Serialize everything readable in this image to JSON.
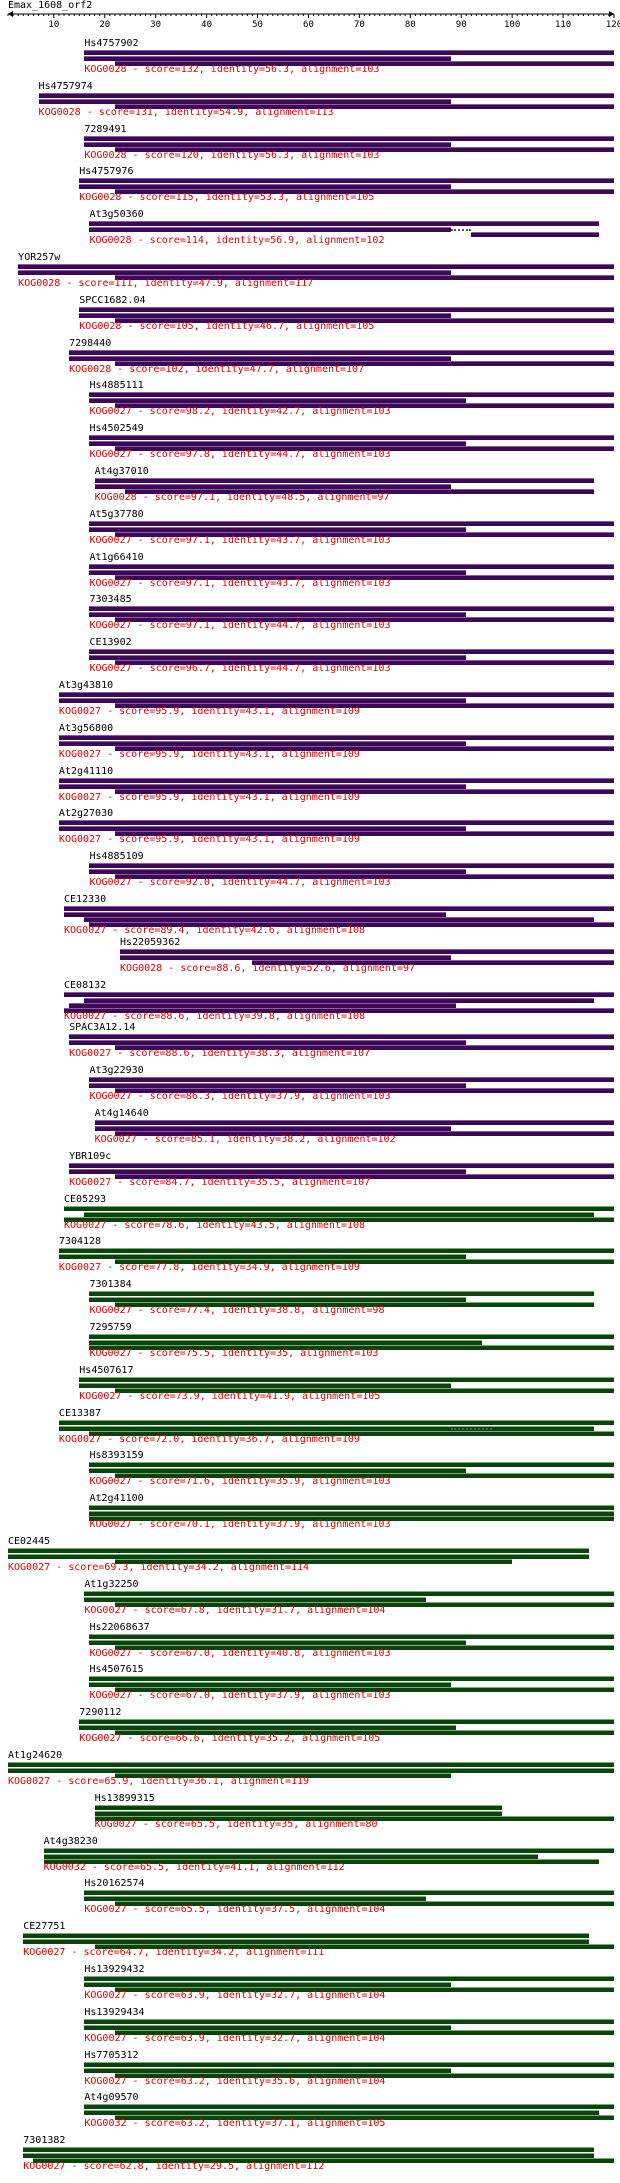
{
  "query": "Emax_1608_orf2",
  "ruler": {
    "min": 1,
    "max": 120,
    "ticks": [
      10,
      20,
      30,
      40,
      50,
      60,
      70,
      80,
      90,
      100,
      110,
      120
    ]
  },
  "colors": {
    "KOG0027": "#3c0a54",
    "KOG0028": "#3c0a54",
    "green": "#0f4010",
    "label": "#e00000"
  },
  "chart_data": {
    "type": "alignment-map",
    "axis": {
      "start": 1,
      "end": 120
    },
    "hits": [
      {
        "name": "Hs4757902",
        "kog": "KOG0028",
        "score": "132",
        "identity": "56.3",
        "alignment": "103",
        "color": "purple",
        "start": 16,
        "end": 120,
        "subject": [
          {
            "s": 16,
            "e": 88
          },
          {
            "s": 22,
            "e": 120
          }
        ]
      },
      {
        "name": "Hs4757974",
        "kog": "KOG0028",
        "score": "131",
        "identity": "54.9",
        "alignment": "113",
        "color": "purple",
        "start": 7,
        "end": 120,
        "subject": [
          {
            "s": 7,
            "e": 88
          },
          {
            "s": 22,
            "e": 120
          }
        ]
      },
      {
        "name": "7289491",
        "kog": "KOG0028",
        "score": "120",
        "identity": "56.3",
        "alignment": "103",
        "color": "purple",
        "start": 16,
        "end": 120,
        "subject": [
          {
            "s": 16,
            "e": 88
          },
          {
            "s": 22,
            "e": 120
          }
        ]
      },
      {
        "name": "Hs4757976",
        "kog": "KOG0028",
        "score": "115",
        "identity": "53.3",
        "alignment": "105",
        "color": "purple",
        "start": 15,
        "end": 120,
        "subject": [
          {
            "s": 15,
            "e": 88
          },
          {
            "s": 22,
            "e": 120
          }
        ]
      },
      {
        "name": "At3g50360",
        "kog": "KOG0028",
        "score": "114",
        "identity": "56.9",
        "alignment": "102",
        "color": "purple",
        "start": 17,
        "end": 117,
        "subject": [
          {
            "s": 17,
            "e": 88
          },
          {
            "s": 92,
            "e": 117
          }
        ],
        "gap": [
          88,
          92
        ]
      },
      {
        "name": "YOR257w",
        "kog": "KOG0028",
        "score": "111",
        "identity": "47.9",
        "alignment": "117",
        "color": "purple",
        "start": 3,
        "end": 120,
        "subject": [
          {
            "s": 3,
            "e": 88
          },
          {
            "s": 22,
            "e": 120
          }
        ]
      },
      {
        "name": "SPCC1682.04",
        "kog": "KOG0028",
        "score": "105",
        "identity": "46.7",
        "alignment": "105",
        "color": "purple",
        "start": 15,
        "end": 120,
        "subject": [
          {
            "s": 15,
            "e": 88
          },
          {
            "s": 22,
            "e": 120
          }
        ]
      },
      {
        "name": "7298440",
        "kog": "KOG0028",
        "score": "102",
        "identity": "47.7",
        "alignment": "107",
        "color": "purple",
        "start": 13,
        "end": 120,
        "subject": [
          {
            "s": 13,
            "e": 88
          },
          {
            "s": 22,
            "e": 120
          }
        ]
      },
      {
        "name": "Hs4885111",
        "kog": "KOG0027",
        "score": "98.2",
        "identity": "42.7",
        "alignment": "103",
        "color": "purple",
        "start": 17,
        "end": 120,
        "subject": [
          {
            "s": 17,
            "e": 91
          },
          {
            "s": 22,
            "e": 120
          }
        ]
      },
      {
        "name": "Hs4502549",
        "kog": "KOG0027",
        "score": "97.8",
        "identity": "44.7",
        "alignment": "103",
        "color": "purple",
        "start": 17,
        "end": 120,
        "subject": [
          {
            "s": 17,
            "e": 91
          },
          {
            "s": 22,
            "e": 120
          }
        ]
      },
      {
        "name": "At4g37010",
        "kog": "KOG0028",
        "score": "97.1",
        "identity": "48.5",
        "alignment": "97",
        "color": "purple",
        "start": 18,
        "end": 116,
        "subject": [
          {
            "s": 18,
            "e": 88
          },
          {
            "s": 24,
            "e": 116
          }
        ]
      },
      {
        "name": "At5g37780",
        "kog": "KOG0027",
        "score": "97.1",
        "identity": "43.7",
        "alignment": "103",
        "color": "purple",
        "start": 17,
        "end": 120,
        "subject": [
          {
            "s": 17,
            "e": 91
          },
          {
            "s": 22,
            "e": 120
          }
        ]
      },
      {
        "name": "At1g66410",
        "kog": "KOG0027",
        "score": "97.1",
        "identity": "43.7",
        "alignment": "103",
        "color": "purple",
        "start": 17,
        "end": 120,
        "subject": [
          {
            "s": 17,
            "e": 91
          },
          {
            "s": 22,
            "e": 120
          }
        ]
      },
      {
        "name": "7303485",
        "kog": "KOG0027",
        "score": "97.1",
        "identity": "44.7",
        "alignment": "103",
        "color": "purple",
        "start": 17,
        "end": 120,
        "subject": [
          {
            "s": 17,
            "e": 91
          },
          {
            "s": 22,
            "e": 120
          }
        ]
      },
      {
        "name": "CE13902",
        "kog": "KOG0027",
        "score": "96.7",
        "identity": "44.7",
        "alignment": "103",
        "color": "purple",
        "start": 17,
        "end": 120,
        "subject": [
          {
            "s": 17,
            "e": 91
          },
          {
            "s": 22,
            "e": 120
          }
        ]
      },
      {
        "name": "At3g43810",
        "kog": "KOG0027",
        "score": "95.9",
        "identity": "43.1",
        "alignment": "109",
        "color": "purple",
        "start": 11,
        "end": 120,
        "subject": [
          {
            "s": 11,
            "e": 91
          },
          {
            "s": 22,
            "e": 120
          }
        ]
      },
      {
        "name": "At3g56800",
        "kog": "KOG0027",
        "score": "95.9",
        "identity": "43.1",
        "alignment": "109",
        "color": "purple",
        "start": 11,
        "end": 120,
        "subject": [
          {
            "s": 11,
            "e": 91
          },
          {
            "s": 22,
            "e": 120
          }
        ]
      },
      {
        "name": "At2g41110",
        "kog": "KOG0027",
        "score": "95.9",
        "identity": "43.1",
        "alignment": "109",
        "color": "purple",
        "start": 11,
        "end": 120,
        "subject": [
          {
            "s": 11,
            "e": 91
          },
          {
            "s": 22,
            "e": 120
          }
        ]
      },
      {
        "name": "At2g27030",
        "kog": "KOG0027",
        "score": "95.9",
        "identity": "43.1",
        "alignment": "109",
        "color": "purple",
        "start": 11,
        "end": 120,
        "subject": [
          {
            "s": 11,
            "e": 91
          },
          {
            "s": 22,
            "e": 120
          }
        ]
      },
      {
        "name": "Hs4885109",
        "kog": "KOG0027",
        "score": "92.0",
        "identity": "44.7",
        "alignment": "103",
        "color": "purple",
        "start": 17,
        "end": 120,
        "subject": [
          {
            "s": 17,
            "e": 91
          },
          {
            "s": 22,
            "e": 120
          }
        ]
      },
      {
        "name": "CE12330",
        "kog": "KOG0027",
        "score": "89.4",
        "identity": "42.6",
        "alignment": "108",
        "color": "purple",
        "start": 12,
        "end": 120,
        "subject": [
          {
            "s": 12,
            "e": 87
          },
          {
            "s": 16,
            "e": 116
          },
          {
            "s": 17,
            "e": 120
          }
        ]
      },
      {
        "name": "Hs22059362",
        "kog": "KOG0028",
        "score": "88.6",
        "identity": "52.6",
        "alignment": "97",
        "color": "purple",
        "start": 23,
        "end": 120,
        "subject": [
          {
            "s": 23,
            "e": 88
          },
          {
            "s": 49,
            "e": 120
          }
        ]
      },
      {
        "name": "CE08132",
        "kog": "KOG0027",
        "score": "88.6",
        "identity": "39.8",
        "alignment": "108",
        "color": "purple",
        "start": 12,
        "end": 120,
        "subject": [
          {
            "s": 16,
            "e": 116
          },
          {
            "s": 13,
            "e": 89
          },
          {
            "s": 12,
            "e": 120
          }
        ]
      },
      {
        "name": "SPAC3A12.14",
        "kog": "KOG0027",
        "score": "88.6",
        "identity": "38.3",
        "alignment": "107",
        "color": "purple",
        "start": 13,
        "end": 120,
        "subject": [
          {
            "s": 13,
            "e": 91
          },
          {
            "s": 22,
            "e": 120
          }
        ]
      },
      {
        "name": "At3g22930",
        "kog": "KOG0027",
        "score": "86.3",
        "identity": "37.9",
        "alignment": "103",
        "color": "purple",
        "start": 17,
        "end": 120,
        "subject": [
          {
            "s": 17,
            "e": 91
          },
          {
            "s": 22,
            "e": 120
          }
        ]
      },
      {
        "name": "At4g14640",
        "kog": "KOG0027",
        "score": "85.1",
        "identity": "38.2",
        "alignment": "102",
        "color": "purple",
        "start": 18,
        "end": 120,
        "subject": [
          {
            "s": 18,
            "e": 88
          },
          {
            "s": 22,
            "e": 120
          }
        ]
      },
      {
        "name": "YBR109c",
        "kog": "KOG0027",
        "score": "84.7",
        "identity": "35.5",
        "alignment": "107",
        "color": "purple",
        "start": 13,
        "end": 120,
        "subject": [
          {
            "s": 13,
            "e": 91
          },
          {
            "s": 22,
            "e": 120
          }
        ]
      },
      {
        "name": "CE05293",
        "kog": "KOG0027",
        "score": "78.6",
        "identity": "43.5",
        "alignment": "108",
        "color": "green",
        "start": 12,
        "end": 120,
        "subject": [
          {
            "s": 16,
            "e": 116
          },
          {
            "s": 12,
            "e": 120
          }
        ]
      },
      {
        "name": "7304128",
        "kog": "KOG0027",
        "score": "77.8",
        "identity": "34.9",
        "alignment": "109",
        "color": "green",
        "start": 11,
        "end": 120,
        "subject": [
          {
            "s": 11,
            "e": 91
          },
          {
            "s": 22,
            "e": 120
          }
        ]
      },
      {
        "name": "7301384",
        "kog": "KOG0027",
        "score": "77.4",
        "identity": "38.8",
        "alignment": "98",
        "color": "green",
        "start": 17,
        "end": 116,
        "subject": [
          {
            "s": 17,
            "e": 91
          },
          {
            "s": 22,
            "e": 116
          }
        ]
      },
      {
        "name": "7295759",
        "kog": "KOG0027",
        "score": "75.5",
        "identity": "35",
        "alignment": "103",
        "color": "green",
        "start": 17,
        "end": 120,
        "subject": [
          {
            "s": 17,
            "e": 94
          },
          {
            "s": 17,
            "e": 120
          }
        ]
      },
      {
        "name": "Hs4507617",
        "kog": "KOG0027",
        "score": "73.9",
        "identity": "41.9",
        "alignment": "105",
        "color": "green",
        "start": 15,
        "end": 120,
        "subject": [
          {
            "s": 15,
            "e": 88
          },
          {
            "s": 22,
            "e": 120
          }
        ]
      },
      {
        "name": "CE13387",
        "kog": "KOG0027",
        "score": "72.0",
        "identity": "36.7",
        "alignment": "109",
        "color": "green",
        "start": 11,
        "end": 120,
        "subject": [
          {
            "s": 11,
            "e": 116
          },
          {
            "s": 17,
            "e": 120
          }
        ],
        "gap": [
          88,
          96
        ]
      },
      {
        "name": "Hs8393159",
        "kog": "KOG0027",
        "score": "71.6",
        "identity": "35.9",
        "alignment": "103",
        "color": "green",
        "start": 17,
        "end": 120,
        "subject": [
          {
            "s": 17,
            "e": 91
          },
          {
            "s": 22,
            "e": 120
          }
        ]
      },
      {
        "name": "At2g41100",
        "kog": "KOG0027",
        "score": "70.1",
        "identity": "37.9",
        "alignment": "103",
        "color": "green",
        "start": 17,
        "end": 120,
        "subject": [
          {
            "s": 17,
            "e": 120
          },
          {
            "s": 17,
            "e": 120
          }
        ]
      },
      {
        "name": "CE02445",
        "kog": "KOG0027",
        "score": "69.3",
        "identity": "34.2",
        "alignment": "114",
        "color": "green",
        "start": 1,
        "end": 115,
        "subject": [
          {
            "s": 1,
            "e": 115
          },
          {
            "s": 22,
            "e": 100
          }
        ]
      },
      {
        "name": "At1g32250",
        "kog": "KOG0027",
        "score": "67.8",
        "identity": "31.7",
        "alignment": "104",
        "color": "green",
        "start": 16,
        "end": 120,
        "subject": [
          {
            "s": 16,
            "e": 83
          },
          {
            "s": 22,
            "e": 120
          }
        ]
      },
      {
        "name": "Hs22068637",
        "kog": "KOG0027",
        "score": "67.0",
        "identity": "40.8",
        "alignment": "103",
        "color": "green",
        "start": 17,
        "end": 120,
        "subject": [
          {
            "s": 17,
            "e": 91
          },
          {
            "s": 22,
            "e": 120
          }
        ]
      },
      {
        "name": "Hs4507615",
        "kog": "KOG0027",
        "score": "67.0",
        "identity": "37.9",
        "alignment": "103",
        "color": "green",
        "start": 17,
        "end": 120,
        "subject": [
          {
            "s": 17,
            "e": 88
          },
          {
            "s": 22,
            "e": 120
          }
        ]
      },
      {
        "name": "7290112",
        "kog": "KOG0027",
        "score": "66.6",
        "identity": "35.2",
        "alignment": "105",
        "color": "green",
        "start": 15,
        "end": 120,
        "subject": [
          {
            "s": 15,
            "e": 89
          },
          {
            "s": 22,
            "e": 120
          }
        ]
      },
      {
        "name": "At1g24620",
        "kog": "KOG0027",
        "score": "65.9",
        "identity": "36.1",
        "alignment": "119",
        "color": "green",
        "start": 1,
        "end": 120,
        "subject": [
          {
            "s": 1,
            "e": 120
          },
          {
            "s": 22,
            "e": 88
          }
        ]
      },
      {
        "name": "Hs13899315",
        "kog": "KOG0027",
        "score": "65.5",
        "identity": "35",
        "alignment": "80",
        "color": "green",
        "start": 18,
        "end": 98,
        "subject": [
          {
            "s": 18,
            "e": 98
          },
          {
            "s": 18,
            "e": 120
          }
        ]
      },
      {
        "name": "At4g38230",
        "kog": "KOG0032",
        "score": "65.5",
        "identity": "41.1",
        "alignment": "112",
        "color": "green",
        "start": 8,
        "end": 120,
        "subject": [
          {
            "s": 8,
            "e": 105
          },
          {
            "s": 8,
            "e": 117
          }
        ]
      },
      {
        "name": "Hs20162574",
        "kog": "KOG0027",
        "score": "65.5",
        "identity": "37.5",
        "alignment": "104",
        "color": "green",
        "start": 16,
        "end": 120,
        "subject": [
          {
            "s": 16,
            "e": 83
          },
          {
            "s": 22,
            "e": 120
          }
        ]
      },
      {
        "name": "CE27751",
        "kog": "KOG0027",
        "score": "64.7",
        "identity": "34.2",
        "alignment": "111",
        "color": "green",
        "start": 4,
        "end": 115,
        "subject": [
          {
            "s": 4,
            "e": 115
          },
          {
            "s": 18,
            "e": 120
          }
        ]
      },
      {
        "name": "Hs13929432",
        "kog": "KOG0027",
        "score": "63.9",
        "identity": "32.7",
        "alignment": "104",
        "color": "green",
        "start": 16,
        "end": 120,
        "subject": [
          {
            "s": 16,
            "e": 88
          },
          {
            "s": 22,
            "e": 120
          }
        ]
      },
      {
        "name": "Hs13929434",
        "kog": "KOG0027",
        "score": "63.9",
        "identity": "32.7",
        "alignment": "104",
        "color": "green",
        "start": 16,
        "end": 120,
        "subject": [
          {
            "s": 16,
            "e": 88
          },
          {
            "s": 22,
            "e": 120
          }
        ]
      },
      {
        "name": "Hs7705312",
        "kog": "KOG0027",
        "score": "63.2",
        "identity": "35.6",
        "alignment": "104",
        "color": "green",
        "start": 16,
        "end": 120,
        "subject": [
          {
            "s": 16,
            "e": 88
          },
          {
            "s": 22,
            "e": 120
          }
        ]
      },
      {
        "name": "At4g09570",
        "kog": "KOG0032",
        "score": "63.2",
        "identity": "37.1",
        "alignment": "105",
        "color": "green",
        "start": 16,
        "end": 120,
        "subject": [
          {
            "s": 16,
            "e": 117
          },
          {
            "s": 22,
            "e": 120
          }
        ]
      },
      {
        "name": "7301382",
        "kog": "KOG0027",
        "score": "62.8",
        "identity": "29.5",
        "alignment": "112",
        "color": "green",
        "start": 4,
        "end": 116,
        "subject": [
          {
            "s": 4,
            "e": 116
          },
          {
            "s": 6,
            "e": 120
          }
        ]
      }
    ]
  }
}
